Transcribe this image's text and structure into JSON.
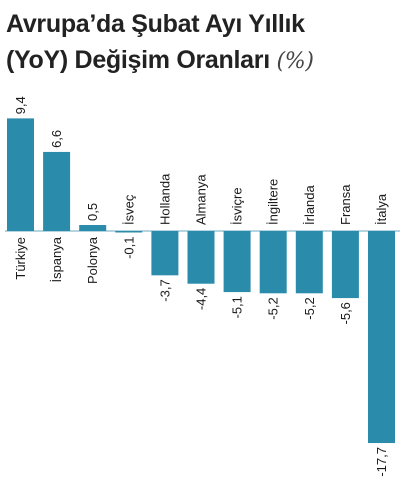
{
  "header": {
    "title_line1": "Avrupa’da Şubat Ayı Yıllık",
    "title_line2": "(YoY) Değişim Oranları",
    "unit": "(%)"
  },
  "chart_data": {
    "type": "bar",
    "title": "Avrupa’da Şubat Ayı Yıllık (YoY) Değişim Oranları (%)",
    "categories": [
      "Türkiye",
      "İspanya",
      "Polonya",
      "İsveç",
      "Hollanda",
      "Almanya",
      "İsviçre",
      "İngiltere",
      "İrlanda",
      "Fransa",
      "İtalya"
    ],
    "values": [
      9.4,
      6.6,
      0.5,
      -0.1,
      -3.7,
      -4.4,
      -5.1,
      -5.2,
      -5.2,
      -5.6,
      -17.7
    ],
    "value_labels": [
      "9,4",
      "6,6",
      "0,5",
      "-0,1",
      "-3,7",
      "-4,4",
      "-5,1",
      "-5,2",
      "-5,2",
      "-5,6",
      "-17,7"
    ],
    "bar_color": "#2b8bab",
    "grid": false,
    "legend": "none"
  }
}
